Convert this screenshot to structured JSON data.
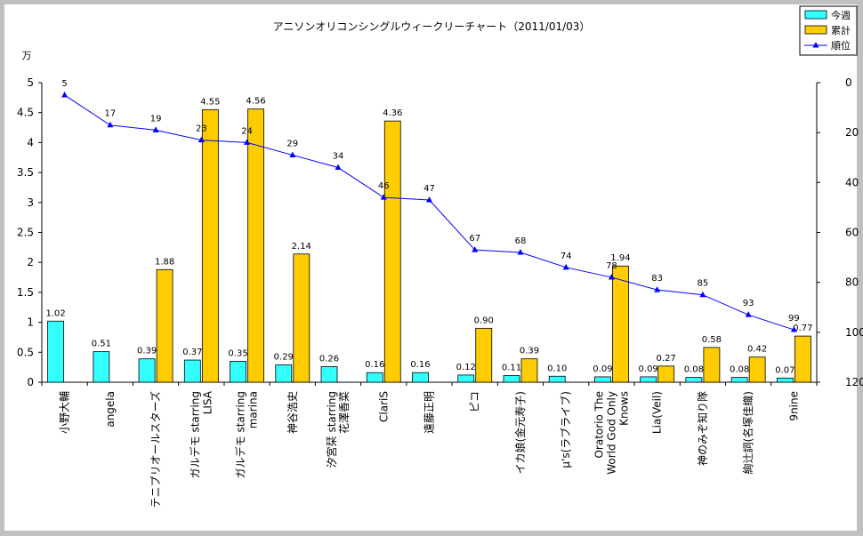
{
  "chart_data": {
    "type": "bar",
    "title": "アニソンオリコンシングルウィークリーチャート（2011/01/03）",
    "ylabel": "万",
    "ylim": [
      0,
      5
    ],
    "y2lim": [
      0,
      120
    ],
    "y2_reversed": true,
    "grid": false,
    "legend_position": "top-right",
    "y_ticks": [
      "0",
      "0.5",
      "1",
      "1.5",
      "2",
      "2.5",
      "3",
      "3.5",
      "4",
      "4.5",
      "5"
    ],
    "y2_ticks": [
      "0",
      "20",
      "40",
      "60",
      "80",
      "100",
      "120"
    ],
    "categories": [
      "小野大輔",
      "angela",
      "テニプリオールスターズ",
      "ガルデモ starring LISA",
      "ガルデモ starring marina",
      "神谷浩史",
      "汐宮栞 starring 花澤香菜",
      "ClariS",
      "遠藤正明",
      "ピコ",
      "イカ娘(金元寿子)",
      "μ's(ラブライブ)",
      "Oratorio The World God Only Knows",
      "Lia(Veil)",
      "神のみぞ知り隊",
      "絢辻詞(名塚佳織)",
      "9nine"
    ],
    "series": [
      {
        "name": "今週",
        "type": "bar",
        "color": "#33ffff",
        "values": [
          1.02,
          0.51,
          0.39,
          0.37,
          0.35,
          0.29,
          0.26,
          0.16,
          0.16,
          0.12,
          0.11,
          0.1,
          0.09,
          0.09,
          0.08,
          0.08,
          0.07
        ],
        "labels": [
          "1.02",
          "0.51",
          "0.39",
          "0.37",
          "0.35",
          "0.29",
          "0.26",
          "0.16",
          "0.16",
          "0.12",
          "0.11",
          "0.10",
          "0.09",
          "0.09",
          "0.08",
          "0.08",
          "0.07"
        ]
      },
      {
        "name": "累計",
        "type": "bar",
        "color": "#ffcc00",
        "values": [
          null,
          null,
          1.88,
          4.55,
          4.56,
          2.14,
          null,
          4.36,
          null,
          0.9,
          0.39,
          null,
          1.94,
          0.27,
          0.58,
          0.42,
          0.77
        ],
        "labels": [
          "",
          "",
          "1.88",
          "4.55",
          "4.56",
          "2.14",
          "",
          "4.36",
          "",
          "0.90",
          "0.39",
          "",
          "1.94",
          "0.27",
          "0.58",
          "0.42",
          "0.77"
        ]
      },
      {
        "name": "順位",
        "type": "line",
        "axis": "right",
        "color": "#0000ff",
        "values": [
          5,
          17,
          19,
          23,
          24,
          29,
          34,
          46,
          47,
          67,
          68,
          74,
          78,
          83,
          85,
          93,
          99
        ],
        "labels": [
          "5",
          "17",
          "19",
          "23",
          "24",
          "29",
          "34",
          "46",
          "47",
          "67",
          "68",
          "74",
          "78",
          "83",
          "85",
          "93",
          "99"
        ]
      }
    ]
  }
}
